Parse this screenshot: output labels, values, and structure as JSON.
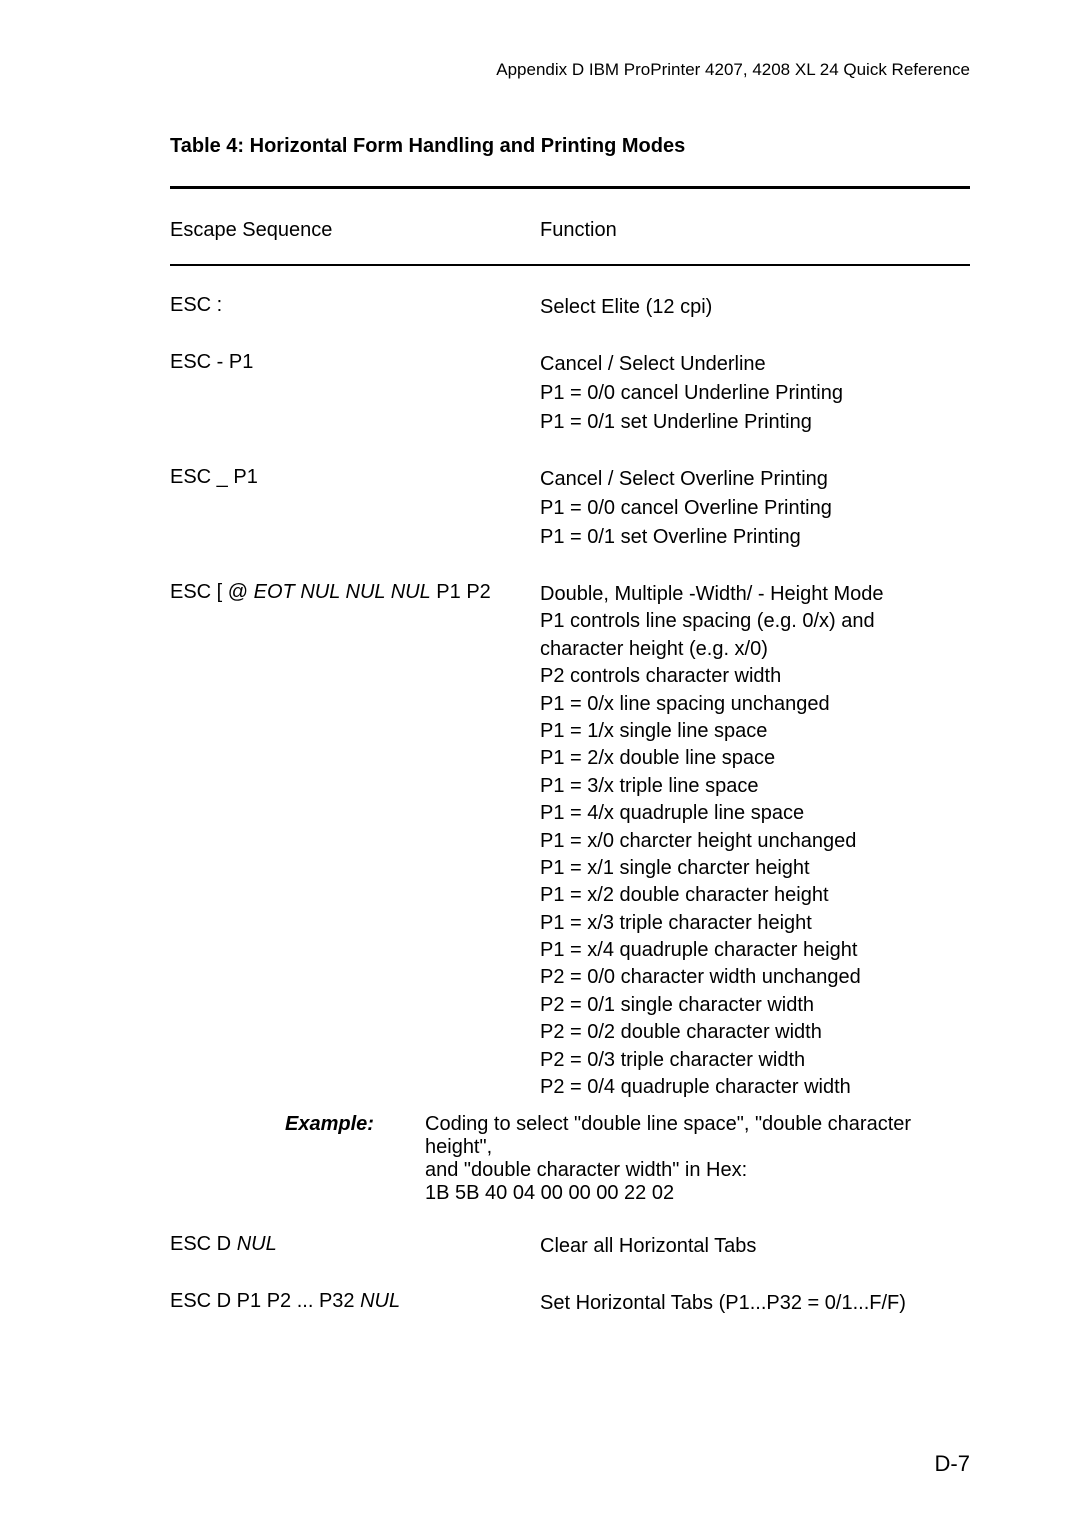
{
  "header": "Appendix D  IBM ProPrinter 4207, 4208 XL 24 Quick Reference",
  "tableTitle": "Table 4: Horizontal Form Handling and Printing Modes",
  "columns": {
    "left": "Escape Sequence",
    "right": "Function"
  },
  "rows": {
    "r1": {
      "seq": "ESC :",
      "func": [
        "Select Elite (12 cpi)"
      ]
    },
    "r2": {
      "seq": "ESC - P1",
      "func": [
        "Cancel / Select Underline",
        "P1 = 0/0 cancel Underline Printing",
        "P1 = 0/1 set Underline Printing"
      ]
    },
    "r3": {
      "seq": "ESC _ P1",
      "func": [
        "Cancel / Select Overline Printing",
        "P1 = 0/0 cancel Overline Printing",
        "P1 = 0/1 set Overline Printing"
      ]
    },
    "r4": {
      "seqPrefix": "ESC [ @ ",
      "seqItalic": "EOT NUL NUL NUL",
      "seqSuffix": " P1 P2",
      "func": [
        "Double, Multiple -Width/ - Height Mode",
        "P1 controls line spacing (e.g. 0/x) and",
        "character height (e.g. x/0)",
        "P2 controls character width",
        "P1 = 0/x  line spacing unchanged",
        "P1 = 1/x  single line space",
        "P1 = 2/x  double line space",
        "P1 = 3/x  triple line space",
        "P1 = 4/x  quadruple line space",
        "P1 = x/0  charcter height unchanged",
        "P1 = x/1  single charcter height",
        "P1 = x/2  double character height",
        "P1 = x/3  triple character height",
        "P1 = x/4  quadruple character height",
        "P2 = 0/0  character width unchanged",
        "P2 = 0/1  single character width",
        "P2 = 0/2  double character width",
        "P2 = 0/3  triple character width",
        "P2 = 0/4  quadruple character width"
      ]
    },
    "example": {
      "label": "Example:",
      "l1": "Coding to select \"double line space\", \"double character height\",",
      "l2": "and \"double character width\" in Hex:",
      "l3": "1B 5B 40 04 00 00 00 22 02"
    },
    "r5": {
      "seqPrefix": "ESC D ",
      "seqItalic": "NUL",
      "func": [
        "Clear all Horizontal Tabs"
      ]
    },
    "r6": {
      "seqPrefix": "ESC D P1 P2 ... P32 ",
      "seqItalic": "NUL",
      "func": [
        "Set Horizontal Tabs    (P1...P32 = 0/1...F/F)"
      ]
    }
  },
  "pageNum": "D-7"
}
